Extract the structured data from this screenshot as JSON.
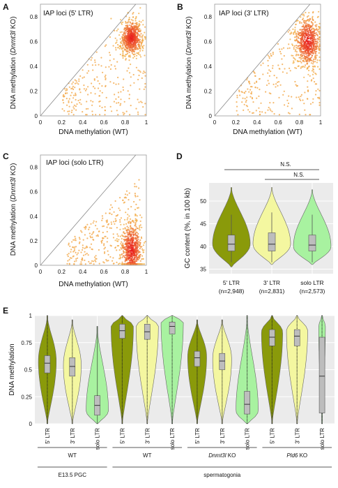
{
  "chart_data": [
    {
      "panel": "A",
      "type": "scatter",
      "title": "IAP loci (5' LTR)",
      "xlabel": "DNA methylation  (WT)",
      "ylabel_parts": [
        "DNA methylation  (",
        "Dnmt3l",
        " KO)"
      ],
      "xlim": [
        0,
        1
      ],
      "ylim": [
        0,
        0.9
      ],
      "xticks": [
        "0",
        "0.2",
        "0.4",
        "0.6",
        "0.8",
        "1"
      ],
      "yticks": [
        "0",
        "0.2",
        "0.4",
        "0.6",
        "0.8"
      ],
      "diagonal": true,
      "density_center": [
        0.86,
        0.63
      ],
      "density_spread": [
        0.05,
        0.07
      ],
      "color_low": "#f2b04a",
      "color_high": "#e8141a"
    },
    {
      "panel": "B",
      "type": "scatter",
      "title": "IAP loci (3' LTR)",
      "xlabel": "DNA methylation  (WT)",
      "ylabel_parts": [
        "DNA methylation  (",
        "Dnmt3l",
        " KO)"
      ],
      "xlim": [
        0,
        1
      ],
      "ylim": [
        0,
        0.9
      ],
      "xticks": [
        "0",
        "0.2",
        "0.4",
        "0.6",
        "0.8",
        "1"
      ],
      "yticks": [
        "0",
        "0.2",
        "0.4",
        "0.6",
        "0.8"
      ],
      "diagonal": true,
      "density_center": [
        0.88,
        0.6
      ],
      "density_spread": [
        0.06,
        0.1
      ],
      "color_low": "#f2b04a",
      "color_high": "#e8141a"
    },
    {
      "panel": "C",
      "type": "scatter",
      "title": "IAP loci (solo LTR)",
      "xlabel": "DNA methylation  (WT)",
      "ylabel_parts": [
        "DNA methylation  (",
        "Dnmt3l",
        " KO)"
      ],
      "xlim": [
        0,
        1
      ],
      "ylim": [
        0,
        0.9
      ],
      "xticks": [
        "0",
        "0.2",
        "0.4",
        "0.6",
        "0.8",
        "1"
      ],
      "yticks": [
        "0",
        "0.2",
        "0.4",
        "0.6",
        "0.8"
      ],
      "diagonal": true,
      "density_center": [
        0.86,
        0.12
      ],
      "density_spread": [
        0.05,
        0.12
      ],
      "color_low": "#f2b04a",
      "color_high": "#e8141a"
    },
    {
      "panel": "D",
      "type": "violin",
      "ylabel": "GC content (%, in 100 kb)",
      "ylim": [
        34,
        54
      ],
      "yticks": [
        35,
        40,
        45,
        50
      ],
      "categories": [
        "5' LTR",
        "3' LTR",
        "solo LTR"
      ],
      "counts": [
        "(n=2,948)",
        "(n=2,831)",
        "(n=2,573)"
      ],
      "colors": [
        "#8a9a0a",
        "#f4f7a0",
        "#a8f2a0"
      ],
      "violins": [
        {
          "min": 35.5,
          "max": 53,
          "q1": 39,
          "median": 40.5,
          "q3": 42.5,
          "whisker_low": 36.5,
          "whisker_high": 47,
          "mode": 40.5
        },
        {
          "min": 36,
          "max": 53,
          "q1": 39,
          "median": 40.5,
          "q3": 43,
          "whisker_low": 36.5,
          "whisker_high": 47.5,
          "mode": 40.5
        },
        {
          "min": 36,
          "max": 52.5,
          "q1": 39,
          "median": 40.3,
          "q3": 42.5,
          "whisker_low": 36.5,
          "whisker_high": 47,
          "mode": 40
        }
      ],
      "significance": [
        {
          "label": "N.S.",
          "from": 0,
          "to": 2
        },
        {
          "label": "N.S.",
          "from": 1,
          "to": 2
        }
      ]
    },
    {
      "panel": "E",
      "type": "violin",
      "ylabel": "DNA methylation",
      "ylim": [
        0,
        1
      ],
      "yticks": [
        "0",
        "0.25",
        "0.5",
        "0.75",
        "1"
      ],
      "categories": [
        "5' LTR",
        "3' LTR",
        "solo LTR",
        "5' LTR",
        "3' LTR",
        "solo LTR",
        "5' LTR",
        "3' LTR",
        "solo LTR",
        "5' LTR",
        "3' LTR",
        "solo LTR"
      ],
      "colors": [
        "#8a9a0a",
        "#f4f7a0",
        "#a8f2a0"
      ],
      "groups": [
        {
          "label_parts": [
            "WT"
          ],
          "italic": [
            false
          ]
        },
        {
          "label_parts": [
            "WT"
          ],
          "italic": [
            false
          ]
        },
        {
          "label_parts": [
            "Dnmt3l",
            " KO"
          ],
          "italic": [
            true,
            false
          ]
        },
        {
          "label_parts": [
            "Pld6",
            " KO"
          ],
          "italic": [
            true,
            false
          ]
        }
      ],
      "supergroups": [
        "E13.5 PGC",
        "spermatogonia"
      ],
      "violins": [
        {
          "min": 0,
          "max": 1.0,
          "q1": 0.47,
          "median": 0.56,
          "q3": 0.63,
          "mode": 0.58,
          "width": 0.8
        },
        {
          "min": 0,
          "max": 0.96,
          "q1": 0.44,
          "median": 0.53,
          "q3": 0.61,
          "mode": 0.54,
          "width": 0.8
        },
        {
          "min": 0,
          "max": 0.9,
          "q1": 0.08,
          "median": 0.17,
          "q3": 0.26,
          "mode": 0.12,
          "width": 1.0
        },
        {
          "min": 0,
          "max": 1.0,
          "q1": 0.79,
          "median": 0.86,
          "q3": 0.92,
          "mode": 0.9,
          "width": 1.0
        },
        {
          "min": 0,
          "max": 1.0,
          "q1": 0.78,
          "median": 0.85,
          "q3": 0.92,
          "mode": 0.9,
          "width": 1.0
        },
        {
          "min": 0,
          "max": 1.0,
          "q1": 0.83,
          "median": 0.9,
          "q3": 0.94,
          "mode": 0.94,
          "width": 1.0
        },
        {
          "min": 0,
          "max": 0.96,
          "q1": 0.53,
          "median": 0.61,
          "q3": 0.67,
          "mode": 0.62,
          "width": 0.85
        },
        {
          "min": 0,
          "max": 0.96,
          "q1": 0.5,
          "median": 0.58,
          "q3": 0.65,
          "mode": 0.6,
          "width": 0.85
        },
        {
          "min": 0,
          "max": 1.0,
          "q1": 0.09,
          "median": 0.18,
          "q3": 0.3,
          "mode": 0.12,
          "width": 1.0
        },
        {
          "min": 0,
          "max": 1.0,
          "q1": 0.72,
          "median": 0.8,
          "q3": 0.87,
          "mode": 0.85,
          "width": 0.95
        },
        {
          "min": 0,
          "max": 1.0,
          "q1": 0.72,
          "median": 0.81,
          "q3": 0.87,
          "mode": 0.86,
          "width": 0.95
        },
        {
          "min": 0,
          "max": 1.0,
          "q1": 0.1,
          "median": 0.44,
          "q3": 0.8,
          "mode": 0.9,
          "width": 0.3
        }
      ]
    }
  ]
}
